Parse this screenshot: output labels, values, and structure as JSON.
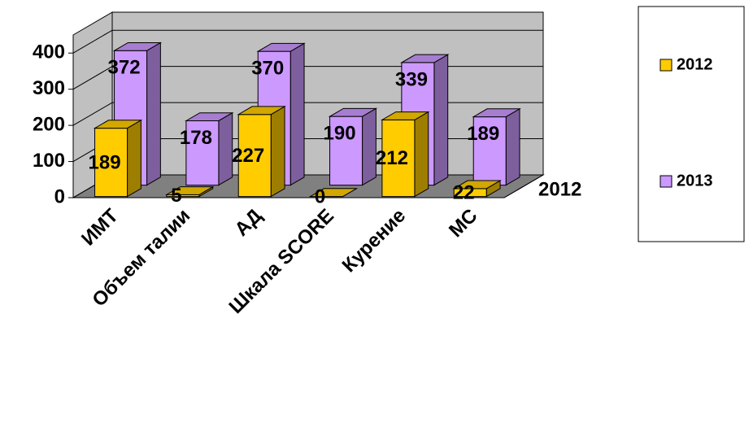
{
  "chart_data": {
    "type": "bar3d",
    "categories": [
      "ИМТ",
      "Объем талии",
      "АД",
      "Шкала SCORE",
      "Курение",
      "МС"
    ],
    "series": [
      {
        "name": "2012",
        "color": "#ffcc00",
        "values": [
          189,
          5,
          227,
          0,
          212,
          22
        ]
      },
      {
        "name": "2013",
        "color": "#cc99ff",
        "values": [
          372,
          178,
          370,
          190,
          339,
          189
        ]
      }
    ],
    "depth_label": "2012",
    "ylim": [
      0,
      450
    ],
    "yticks": [
      0,
      100,
      200,
      300,
      400
    ],
    "grid": true,
    "legend": "right"
  }
}
